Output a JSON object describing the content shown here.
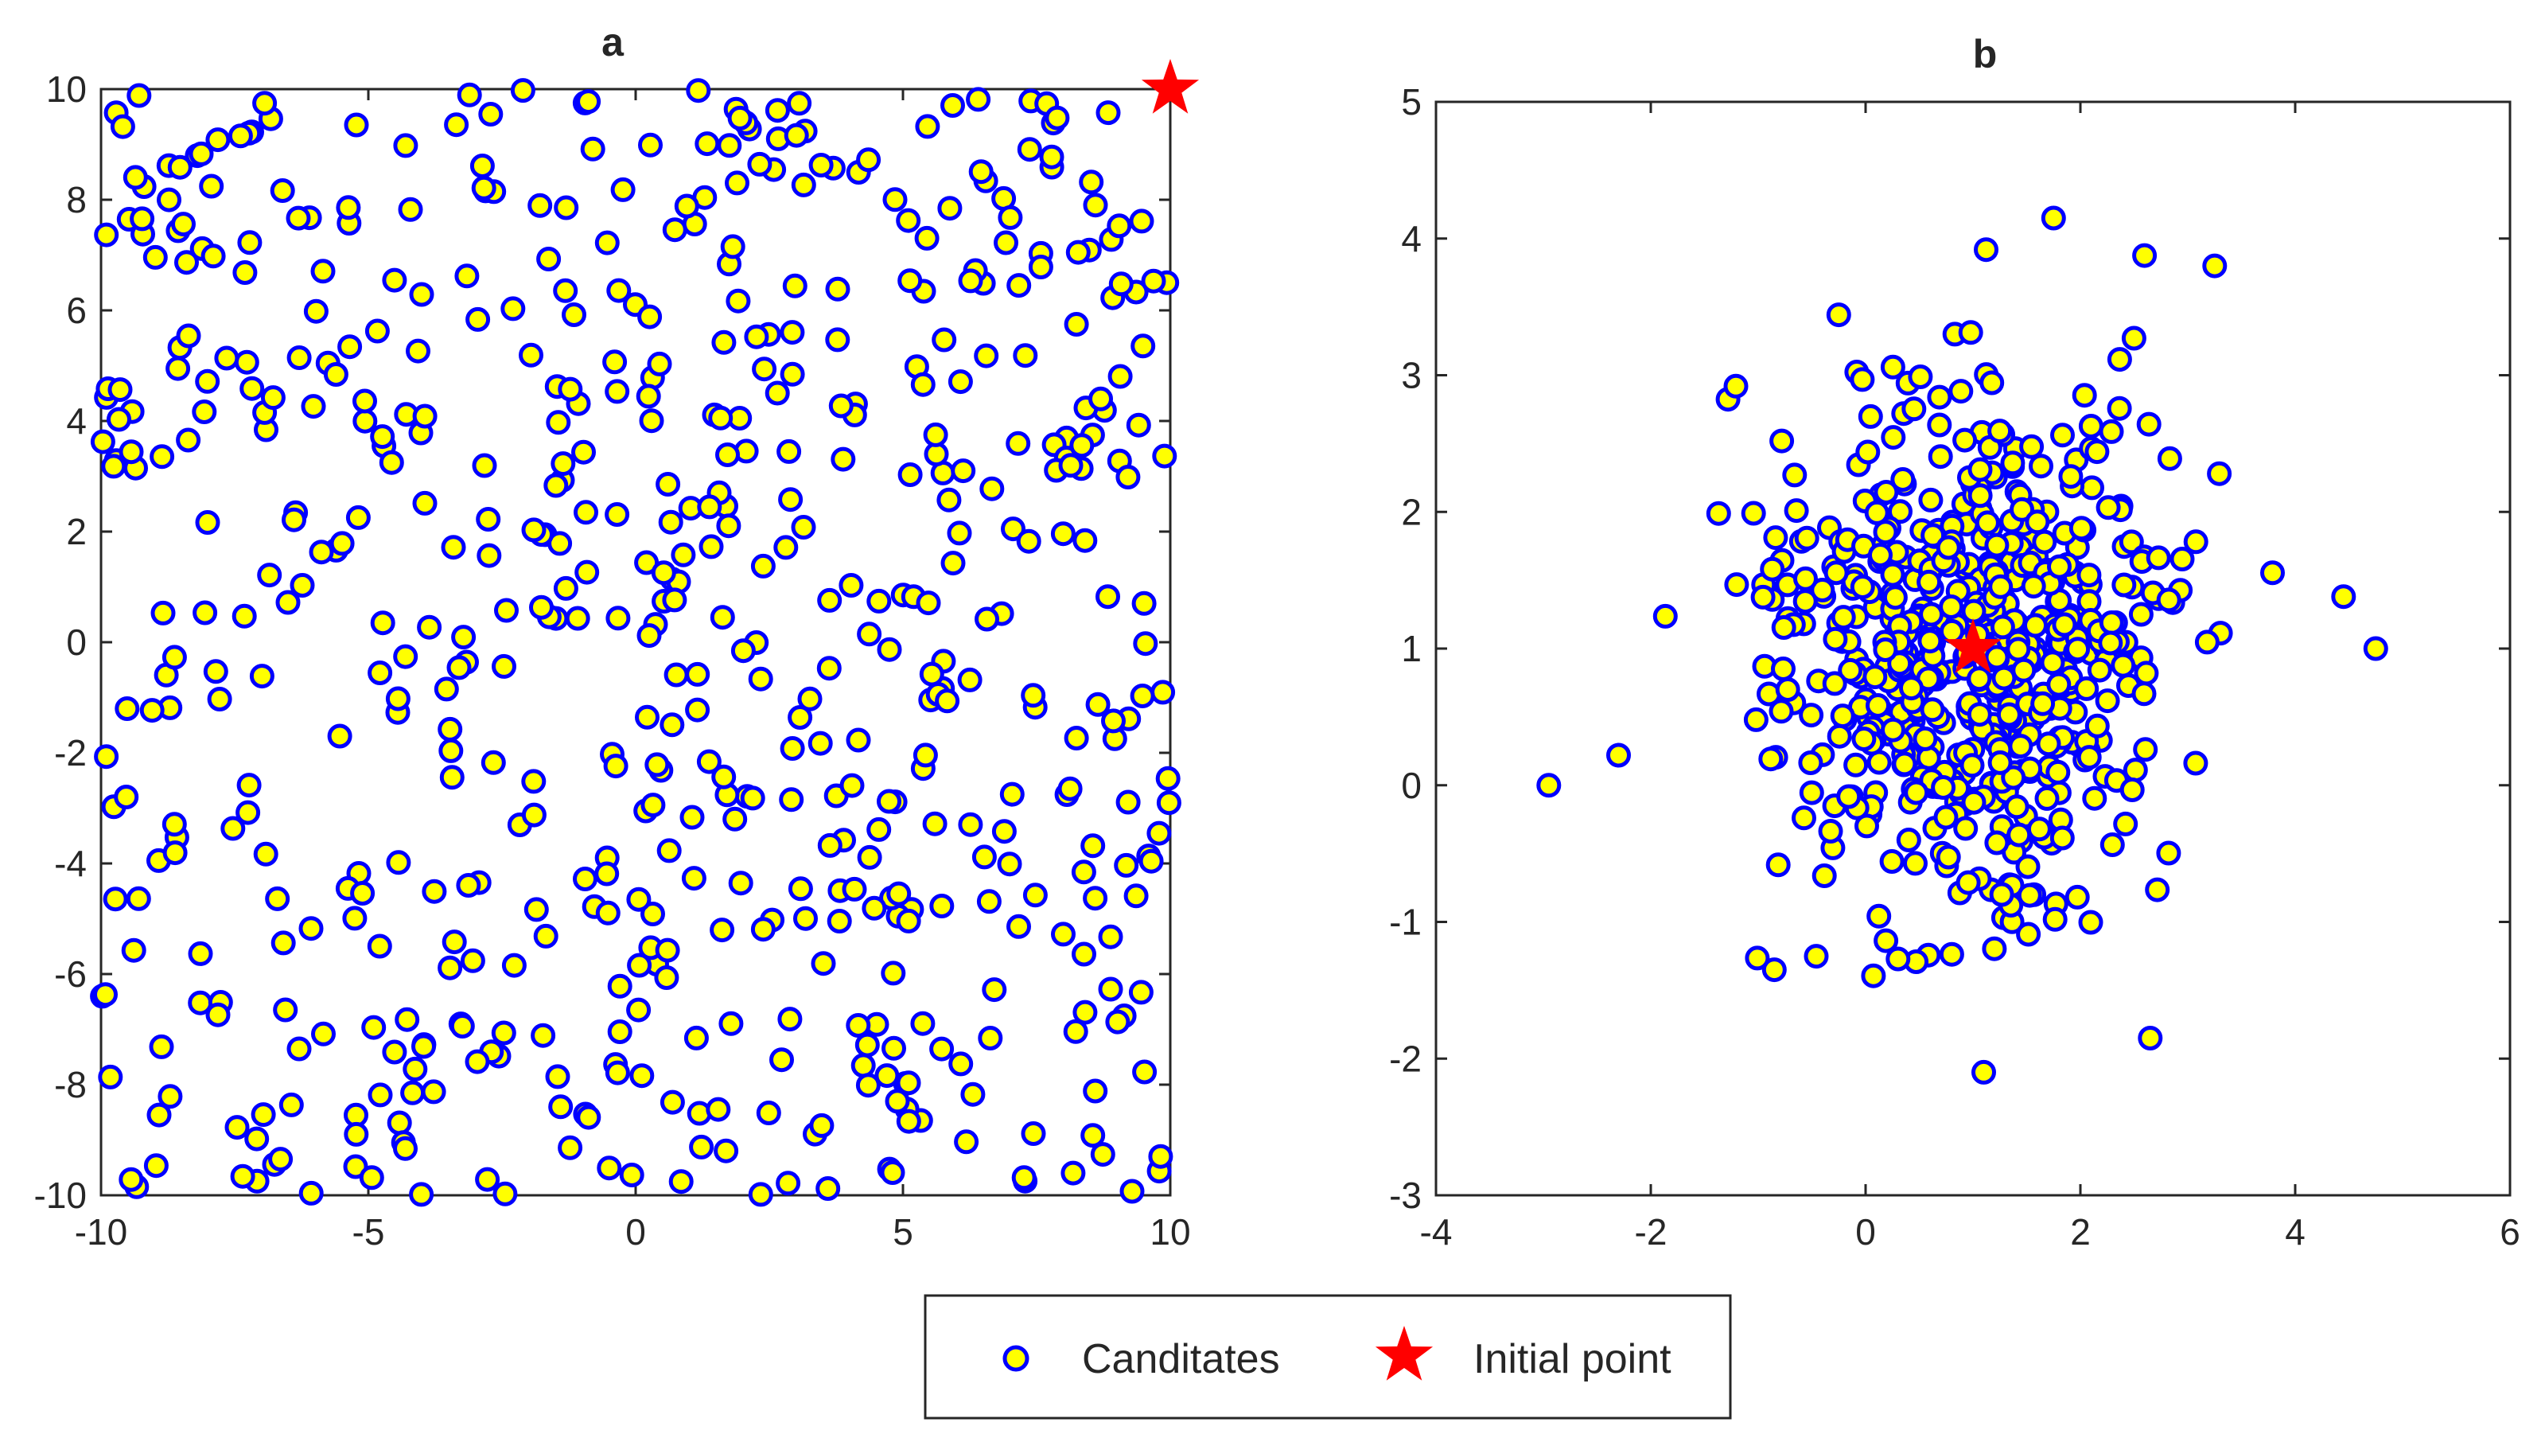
{
  "figure": {
    "colors": {
      "marker_face": "#FFFF00",
      "marker_edge": "#0000FF",
      "star": "#FF0000",
      "axes": "#262626",
      "background": "#FFFFFF"
    }
  },
  "chart_data": [
    {
      "type": "scatter",
      "title": "a",
      "xlabel": "",
      "ylabel": "",
      "xlim": [
        -10,
        10
      ],
      "ylim": [
        -10,
        10
      ],
      "xticks": [
        -10,
        -5,
        0,
        5,
        10
      ],
      "yticks": [
        -10,
        -8,
        -6,
        -4,
        -2,
        0,
        2,
        4,
        6,
        8,
        10
      ],
      "grid": false,
      "candidate_count": 600,
      "candidate_distribution": "uniform",
      "candidate_seed": 12345,
      "series": [
        {
          "name": "Canditates",
          "marker": "circle"
        },
        {
          "name": "Initial point",
          "marker": "star",
          "points": [
            [
              10,
              10
            ]
          ]
        }
      ]
    },
    {
      "type": "scatter",
      "title": "b",
      "xlabel": "",
      "ylabel": "",
      "xlim": [
        -4,
        6
      ],
      "ylim": [
        -3,
        5
      ],
      "xticks": [
        -4,
        -2,
        0,
        2,
        4,
        6
      ],
      "yticks": [
        -3,
        -2,
        -1,
        0,
        1,
        2,
        3,
        4,
        5
      ],
      "grid": false,
      "candidate_count": 600,
      "candidate_distribution": "normal",
      "candidate_center": [
        1,
        1
      ],
      "candidate_sd": [
        0.95,
        0.95
      ],
      "candidate_seed": 98765,
      "series": [
        {
          "name": "Canditates",
          "marker": "circle",
          "notable_points": [
            [
              -2.95,
              0
            ],
            [
              -2.3,
              0.22
            ],
            [
              4.75,
              1.0
            ],
            [
              4.45,
              1.38
            ],
            [
              1.75,
              4.15
            ],
            [
              3.25,
              3.8
            ],
            [
              1.1,
              -2.1
            ],
            [
              2.65,
              -1.85
            ],
            [
              -0.85,
              -1.35
            ]
          ]
        },
        {
          "name": "Initial point",
          "marker": "star",
          "points": [
            [
              1,
              1
            ]
          ]
        }
      ]
    }
  ],
  "legend": {
    "placement": "bottom-center",
    "entries": [
      {
        "label": "Canditates",
        "marker": "circle"
      },
      {
        "label": "Initial point",
        "marker": "star"
      }
    ]
  }
}
